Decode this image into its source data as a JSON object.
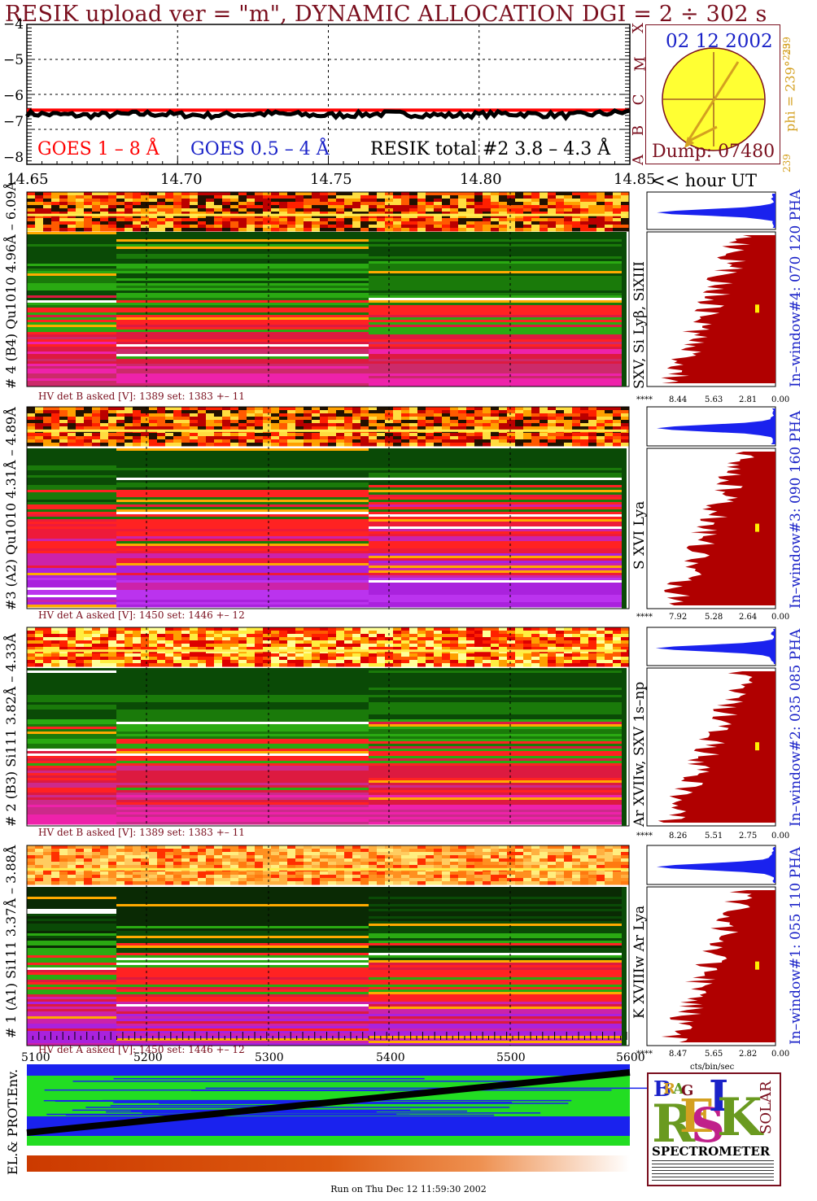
{
  "title": "RESIK upload ver = \"m\", DYNAMIC ALLOCATION  DGI =   2 ÷ 302 s",
  "light_curve": {
    "y_ticks": [
      "−4",
      "−5",
      "−6",
      "−7",
      "−8"
    ],
    "x_ticks": [
      "14.65",
      "14.70",
      "14.75",
      "14.80",
      "14.85"
    ],
    "x_unit_label": "<< hour UT",
    "legend_goes_long": "GOES 1 – 8 Å",
    "legend_goes_short": "GOES 0.5 – 4 Å",
    "legend_resik": "RESIK total #2  3.8 – 4.3 Å",
    "goes_classes": [
      "X",
      "M",
      "C",
      "B",
      "A"
    ],
    "colors": {
      "goes_long": "#ff0000",
      "goes_short": "#1a22c8",
      "resik": "#000000",
      "title": "#7a0f1e"
    }
  },
  "sun": {
    "date": "02 12 2002",
    "dump": "Dump: 07480",
    "phi_label": "phi = 239°",
    "phi_sup": "239",
    "phi_bottom": "239"
  },
  "detectors": [
    {
      "id": 4,
      "label": "# 4 (B4) Qu1010 4.96Å – 6.09Å",
      "lines": "SXV, Si Lyβ, SiXIII",
      "pha": "In–window#4:  070 120 PHA",
      "hv": "HV det B asked [V]:  1389 set:  1383 +–   11",
      "x_ticks": [
        "****",
        "8.44",
        "5.63",
        "2.81",
        "0.00"
      ]
    },
    {
      "id": 3,
      "label": "#3 (A2) Qu1010  4.31Å – 4.89Å",
      "lines": "S XVI Lya",
      "pha": "In–window#3:  090 160 PHA",
      "hv": "HV det A asked [V]:  1450 set:  1446 +–   12",
      "x_ticks": [
        "****",
        "7.92",
        "5.28",
        "2.64",
        "0.00"
      ]
    },
    {
      "id": 2,
      "label": "# 2 (B3) Si111  3.82Å – 4.33Å",
      "lines": "Ar XVIIw,  SXV  1s–np",
      "pha": "In–window#2:  035 085 PHA",
      "hv": "HV det B asked [V]:  1389 set:  1383 +–   11",
      "x_ticks": [
        "****",
        "8.26",
        "5.51",
        "2.75",
        "0.00"
      ]
    },
    {
      "id": 1,
      "label": "# 1 (A1) Si111  3.37Å – 3.88Å",
      "lines": "K XVIIIw  Ar Lya",
      "pha": "In–window#1:  055 110 PHA",
      "hv": "HV det A asked [V]:  1450 set:  1446 +–   12",
      "x_ticks": [
        "****",
        "8.47",
        "5.65",
        "2.82",
        "0.00"
      ]
    }
  ],
  "bottom_axis": {
    "ticks": [
      "5100",
      "5200",
      "5300",
      "5400",
      "5500",
      "5600"
    ],
    "unit": "cts/bin/sec"
  },
  "env_label": "EL.& PROT.Env.",
  "logo": {
    "small_letters": [
      "B",
      "R",
      "A",
      "G"
    ],
    "big_letters": [
      "R",
      "E",
      "S",
      "I",
      "K"
    ],
    "side": "SOLAR",
    "caption": "SPECTROMETER"
  },
  "run_on": "Run on Thu Dec 12 11:59:30 2002",
  "chart_data": {
    "type": "line",
    "title": "RESIK upload ver = \"m\", DYNAMIC ALLOCATION  DGI =   2 ÷ 302 s",
    "xlabel": "hour UT",
    "ylabel": "",
    "xlim": [
      14.65,
      14.85
    ],
    "ylim": [
      -8,
      -4
    ],
    "grid": true,
    "series": [
      {
        "name": "GOES 1 – 8 Å",
        "x": [
          14.65,
          14.7,
          14.75,
          14.8,
          14.85
        ],
        "values": [
          -6.45,
          -6.45,
          -6.45,
          -6.45,
          -6.45
        ]
      },
      {
        "name": "RESIK total #2  3.8 – 4.3 Å",
        "x": [
          14.65,
          14.67,
          14.69,
          14.71,
          14.73,
          14.75,
          14.77,
          14.79,
          14.81,
          14.83,
          14.85
        ],
        "values": [
          -6.55,
          -6.6,
          -6.55,
          -6.6,
          -6.55,
          -6.6,
          -6.55,
          -6.6,
          -6.55,
          -6.6,
          -6.5
        ]
      }
    ]
  }
}
